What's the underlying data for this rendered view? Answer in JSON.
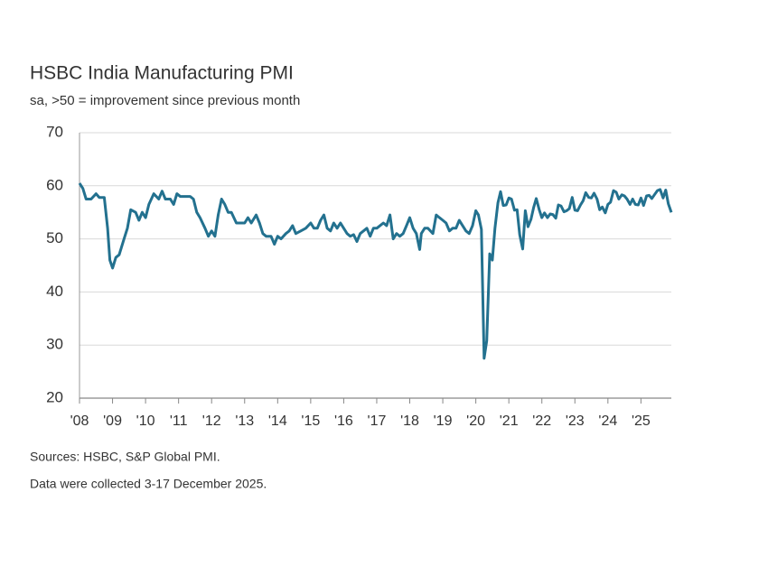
{
  "chart_data": {
    "type": "line",
    "title": "HSBC India Manufacturing PMI",
    "subtitle": "sa, >50 = improvement since previous month",
    "sources": "Sources: HSBC, S&P Global PMI.",
    "note": "Data were collected 3-17 December 2025.",
    "xlim": [
      2008,
      2025.92
    ],
    "xticks": [
      {
        "value": 2008,
        "label": "'08"
      },
      {
        "value": 2009,
        "label": "'09"
      },
      {
        "value": 2010,
        "label": "'10"
      },
      {
        "value": 2011,
        "label": "'11"
      },
      {
        "value": 2012,
        "label": "'12"
      },
      {
        "value": 2013,
        "label": "'13"
      },
      {
        "value": 2014,
        "label": "'14"
      },
      {
        "value": 2015,
        "label": "'15"
      },
      {
        "value": 2016,
        "label": "'16"
      },
      {
        "value": 2017,
        "label": "'17"
      },
      {
        "value": 2018,
        "label": "'18"
      },
      {
        "value": 2019,
        "label": "'19"
      },
      {
        "value": 2020,
        "label": "'20"
      },
      {
        "value": 2021,
        "label": "'21"
      },
      {
        "value": 2022,
        "label": "'22"
      },
      {
        "value": 2023,
        "label": "'23"
      },
      {
        "value": 2024,
        "label": "'24"
      },
      {
        "value": 2025,
        "label": "'25"
      }
    ],
    "ylim": [
      20,
      70
    ],
    "yticks": [
      20,
      30,
      40,
      50,
      60,
      70
    ],
    "grid": true,
    "x": [
      2008.0,
      2008.1,
      2008.2,
      2008.35,
      2008.5,
      2008.6,
      2008.75,
      2008.85,
      2008.92,
      2009.0,
      2009.1,
      2009.2,
      2009.35,
      2009.45,
      2009.55,
      2009.7,
      2009.8,
      2009.9,
      2010.0,
      2010.1,
      2010.25,
      2010.4,
      2010.5,
      2010.6,
      2010.75,
      2010.85,
      2010.95,
      2011.05,
      2011.2,
      2011.35,
      2011.45,
      2011.55,
      2011.65,
      2011.8,
      2011.9,
      2012.0,
      2012.1,
      2012.2,
      2012.3,
      2012.4,
      2012.5,
      2012.6,
      2012.75,
      2012.85,
      2013.0,
      2013.1,
      2013.2,
      2013.35,
      2013.45,
      2013.55,
      2013.65,
      2013.8,
      2013.9,
      2014.0,
      2014.1,
      2014.25,
      2014.35,
      2014.45,
      2014.55,
      2014.7,
      2014.85,
      2015.0,
      2015.1,
      2015.2,
      2015.3,
      2015.4,
      2015.5,
      2015.6,
      2015.7,
      2015.8,
      2015.9,
      2016.0,
      2016.1,
      2016.2,
      2016.3,
      2016.4,
      2016.5,
      2016.6,
      2016.7,
      2016.8,
      2016.9,
      2017.0,
      2017.1,
      2017.2,
      2017.3,
      2017.4,
      2017.5,
      2017.6,
      2017.7,
      2017.8,
      2017.9,
      2018.0,
      2018.1,
      2018.2,
      2018.3,
      2018.35,
      2018.45,
      2018.55,
      2018.7,
      2018.8,
      2018.9,
      2019.0,
      2019.1,
      2019.2,
      2019.3,
      2019.4,
      2019.5,
      2019.6,
      2019.7,
      2019.8,
      2019.9,
      2020.0,
      2020.08,
      2020.17,
      2020.25,
      2020.33,
      2020.42,
      2020.5,
      2020.58,
      2020.67,
      2020.75,
      2020.83,
      2020.92,
      2021.0,
      2021.08,
      2021.17,
      2021.25,
      2021.33,
      2021.42,
      2021.5,
      2021.58,
      2021.67,
      2021.75,
      2021.83,
      2021.92,
      2022.0,
      2022.08,
      2022.17,
      2022.25,
      2022.33,
      2022.42,
      2022.5,
      2022.58,
      2022.67,
      2022.75,
      2022.83,
      2022.92,
      2023.0,
      2023.08,
      2023.17,
      2023.25,
      2023.33,
      2023.42,
      2023.5,
      2023.58,
      2023.67,
      2023.75,
      2023.83,
      2023.92,
      2024.0,
      2024.08,
      2024.17,
      2024.25,
      2024.33,
      2024.42,
      2024.5,
      2024.58,
      2024.67,
      2024.75,
      2024.83,
      2024.92,
      2025.0,
      2025.08,
      2025.17,
      2025.25,
      2025.33,
      2025.42,
      2025.5,
      2025.58,
      2025.67,
      2025.75,
      2025.83,
      2025.92
    ],
    "series": [
      {
        "name": "HSBC India Manufacturing PMI",
        "color": "#23718f",
        "values": [
          60.5,
          59.5,
          57.5,
          57.5,
          58.5,
          57.8,
          57.8,
          52,
          46,
          44.5,
          46.5,
          47,
          50,
          52,
          55.5,
          55,
          53.5,
          55,
          54,
          56.5,
          58.5,
          57.5,
          59,
          57.5,
          57.5,
          56.5,
          58.5,
          58,
          58,
          58,
          57.5,
          55,
          54,
          52,
          50.5,
          51.5,
          50.5,
          54.5,
          57.5,
          56.5,
          55,
          55,
          53,
          53,
          53,
          54,
          53,
          54.5,
          53,
          51,
          50.5,
          50.5,
          49,
          50.5,
          50,
          51,
          51.5,
          52.5,
          51,
          51.5,
          52,
          53,
          52,
          52,
          53.5,
          54.5,
          52,
          51.5,
          53,
          52,
          53,
          52,
          51,
          50.5,
          50.8,
          49.5,
          51,
          51.5,
          52,
          50.5,
          52,
          52,
          52.5,
          53,
          52.5,
          54.5,
          50,
          51,
          50.5,
          51,
          52.5,
          54,
          52,
          51,
          48,
          51,
          52,
          52,
          51,
          54.5,
          54,
          53.5,
          53,
          51.5,
          52,
          52,
          53.5,
          52.5,
          51.5,
          51,
          52.5,
          55.3,
          54.5,
          51.8,
          27.5,
          30.8,
          47.2,
          46,
          52,
          56.8,
          58.9,
          56.3,
          56.4,
          57.7,
          57.5,
          55.4,
          55.5,
          50.8,
          48.1,
          55.3,
          52.3,
          53.7,
          55.9,
          57.6,
          55.5,
          54,
          54.9,
          54,
          54.7,
          54.6,
          53.9,
          56.4,
          56.2,
          55.1,
          55.3,
          55.7,
          57.8,
          55.4,
          55.3,
          56.4,
          57.2,
          58.7,
          57.8,
          57.7,
          58.6,
          57.5,
          55.5,
          56,
          54.9,
          56.5,
          56.9,
          59.1,
          58.8,
          57.5,
          58.3,
          58.1,
          57.5,
          56.5,
          57.5,
          56.5,
          56.4,
          57.7,
          56.3,
          58.1,
          58.2,
          57.6,
          58.4,
          59.1,
          59.3,
          57.7,
          59.2,
          56.6,
          55
        ]
      }
    ]
  }
}
